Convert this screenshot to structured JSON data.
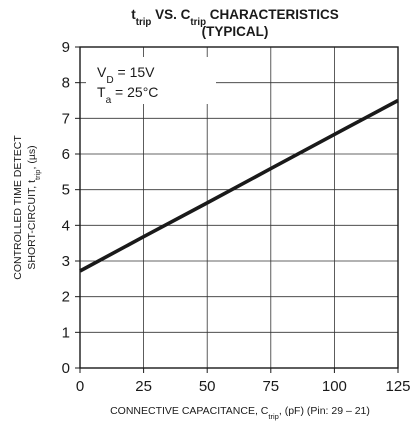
{
  "chart_data": {
    "type": "line",
    "title": {
      "line1": [
        {
          "t": "t"
        },
        {
          "t": "trip",
          "sub": true
        },
        {
          "t": " VS. C"
        },
        {
          "t": "trip",
          "sub": true
        },
        {
          "t": " CHARACTERISTICS"
        }
      ],
      "line2": "(TYPICAL)"
    },
    "xlabel": [
      {
        "t": "CONNECTIVE CAPACITANCE, C"
      },
      {
        "t": "trip",
        "sub": true
      },
      {
        "t": ", (pF) (Pin: 29 – 21)"
      }
    ],
    "ylabel": {
      "line1": "CONTROLLED TIME DETECT",
      "line2": [
        {
          "t": "SHORT-CIRCUIT, t"
        },
        {
          "t": "trip",
          "sub": true
        },
        {
          "t": ", (µs)"
        }
      ]
    },
    "xlim": [
      0,
      125
    ],
    "ylim": [
      0,
      9
    ],
    "xticks": [
      0,
      25,
      50,
      75,
      100,
      125
    ],
    "yticks": [
      0,
      1,
      2,
      3,
      4,
      5,
      6,
      7,
      8,
      9
    ],
    "grid": true,
    "annotations": [
      [
        {
          "t": "V"
        },
        {
          "t": "D",
          "sub": true
        },
        {
          "t": " = 15V"
        }
      ],
      [
        {
          "t": "T"
        },
        {
          "t": "a",
          "sub": true
        },
        {
          "t": " = 25°C"
        }
      ]
    ],
    "series": [
      {
        "x": [
          0,
          25,
          50,
          75,
          100,
          125
        ],
        "y": [
          2.72,
          3.68,
          4.63,
          5.59,
          6.55,
          7.5
        ],
        "color": "#1a1a1a"
      }
    ]
  }
}
